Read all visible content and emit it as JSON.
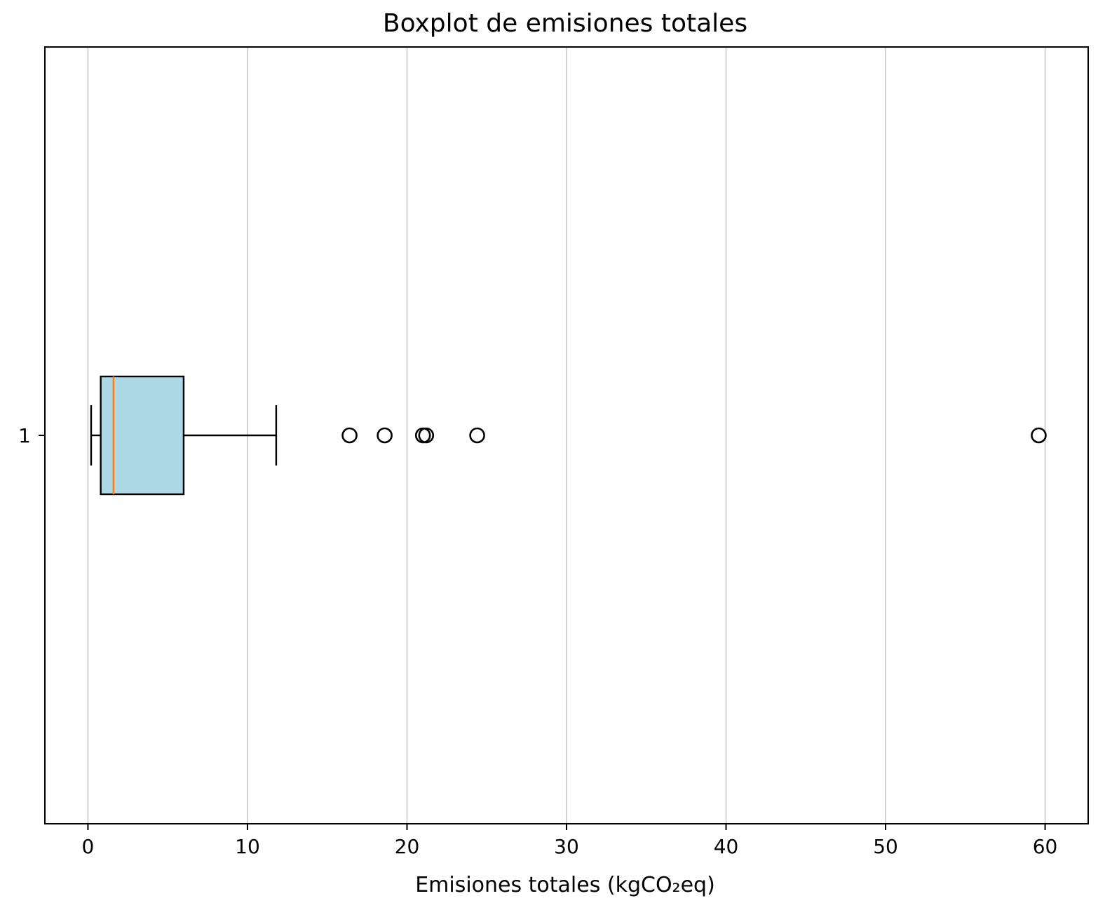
{
  "chart_data": {
    "type": "boxplot",
    "orientation": "horizontal",
    "title": "Boxplot de emisiones totales",
    "xlabel": "Emisiones totales (kgCO₂eq)",
    "ylabel": "",
    "xlim": [
      -2.7,
      62.7
    ],
    "xticks": [
      0,
      10,
      20,
      30,
      40,
      50,
      60
    ],
    "xtick_labels": [
      "0",
      "10",
      "20",
      "30",
      "40",
      "50",
      "60"
    ],
    "grid": "x",
    "categories": [
      "1"
    ],
    "boxes": [
      {
        "label": "1",
        "whisker_low": 0.2,
        "q1": 0.8,
        "median": 1.6,
        "q3": 6.0,
        "whisker_high": 11.8,
        "outliers": [
          16.4,
          18.6,
          21.0,
          21.2,
          24.4,
          59.6
        ]
      }
    ],
    "colors": {
      "box_fill": "#add8e6",
      "median_line": "#ff7f0e",
      "grid": "#b0b0b0",
      "axes": "#000000"
    }
  }
}
